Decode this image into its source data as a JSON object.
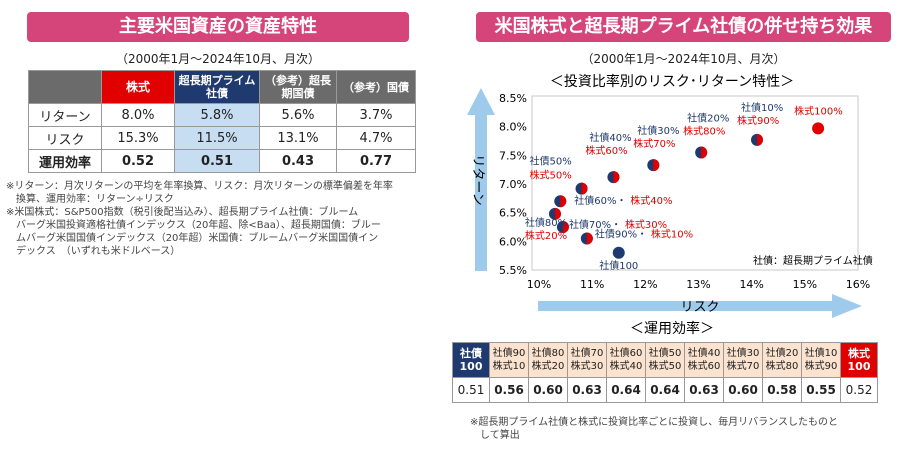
{
  "left": {
    "title": "主要米国資産の資産特性",
    "subtitle": "（2000年1月～2024年10月、月次）",
    "columns": [
      "株式",
      "超長期プライム社債",
      "（参考）超長期国債",
      "（参考）国債"
    ],
    "rows": [
      {
        "label": "リターン",
        "values": [
          "8.0%",
          "5.8%",
          "5.6%",
          "3.7%"
        ]
      },
      {
        "label": "リスク",
        "values": [
          "15.3%",
          "11.5%",
          "13.1%",
          "4.7%"
        ]
      },
      {
        "label": "運用効率",
        "values": [
          "0.52",
          "0.51",
          "0.43",
          "0.77"
        ]
      }
    ],
    "notes": [
      "※リターン：月次リターンの平均を年率換算、リスク：月次リターンの標準偏差を年率",
      "換算、運用効率：リターン÷リスク",
      "※米国株式：S&P500指数（税引後配当込み）、超長期プライム社債：ブルーム",
      "バーグ米国投資適格社債インデックス（20年超、除<Baa）、超長期国債：ブルー",
      "ムバーグ米国国債インデックス（20年超）米国債：ブルームバーグ米国国債イン",
      "デックス　（いずれも米ドルベース）"
    ]
  },
  "right": {
    "title": "米国株式と超長期プライム社債の併せ持ち効果",
    "subtitle": "（2000年1月～2024年10月、月次）",
    "chart_title": "＜投資比率別のリスク･リターン特性＞",
    "legend_note": "社債：超長期プライム社債",
    "efficiency_title": "＜運用効率＞",
    "efficiency_labels": [
      [
        "社債",
        "100"
      ],
      [
        "社債90",
        "株式10"
      ],
      [
        "社債80",
        "株式20"
      ],
      [
        "社債70",
        "株式30"
      ],
      [
        "社債60",
        "株式40"
      ],
      [
        "社債50",
        "株式50"
      ],
      [
        "社債40",
        "株式60"
      ],
      [
        "社債30",
        "株式70"
      ],
      [
        "社債20",
        "株式80"
      ],
      [
        "社債10",
        "株式90"
      ],
      [
        "株式",
        "100"
      ]
    ],
    "efficiency_values": [
      "0.51",
      "0.56",
      "0.60",
      "0.63",
      "0.64",
      "0.64",
      "0.63",
      "0.60",
      "0.58",
      "0.55",
      "0.52"
    ],
    "footnote": [
      "※超長期プライム社債と株式に投資比率ごとに投資し、毎月リバランスしたものと",
      "して算出"
    ]
  },
  "colors": {
    "pink": "#d6457a",
    "navy": "#1f3a6e",
    "red": "#e00000",
    "lightblue": "#c6ddf2",
    "gray": "#6b6b6b",
    "arrow": "#9ecbec",
    "peach": "#fbe3cf"
  },
  "chart_data": {
    "type": "scatter",
    "xlabel": "リスク",
    "ylabel": "リターン",
    "xlim": [
      10,
      16
    ],
    "ylim": [
      5.5,
      8.5
    ],
    "xticks": [
      "10%",
      "11%",
      "12%",
      "13%",
      "14%",
      "15%",
      "16%"
    ],
    "yticks": [
      "5.5%",
      "6.0%",
      "6.5%",
      "7.0%",
      "7.5%",
      "8.0%",
      "8.5%"
    ],
    "points": [
      {
        "bond": "社債100",
        "stock": "",
        "x": 11.5,
        "y": 5.8
      },
      {
        "bond": "社債90%・",
        "stock": "株式10%",
        "x": 10.9,
        "y": 6.05
      },
      {
        "bond": "社債80%",
        "stock": "株式20%",
        "x": 10.45,
        "y": 6.25
      },
      {
        "bond": "社債70%・",
        "stock": "株式30%",
        "x": 10.3,
        "y": 6.48
      },
      {
        "bond": "社債60%・",
        "stock": "株式40%",
        "x": 10.4,
        "y": 6.7
      },
      {
        "bond": "社債50%",
        "stock": "株式50%",
        "x": 10.8,
        "y": 6.92
      },
      {
        "bond": "社債40%",
        "stock": "株式60%",
        "x": 11.4,
        "y": 7.12
      },
      {
        "bond": "社債30%",
        "stock": "株式70%",
        "x": 12.15,
        "y": 7.33
      },
      {
        "bond": "社債20%",
        "stock": "株式80%",
        "x": 13.05,
        "y": 7.55
      },
      {
        "bond": "社債10%",
        "stock": "株式90%",
        "x": 14.1,
        "y": 7.77
      },
      {
        "bond": "",
        "stock": "株式100%",
        "x": 15.25,
        "y": 7.97
      }
    ]
  }
}
